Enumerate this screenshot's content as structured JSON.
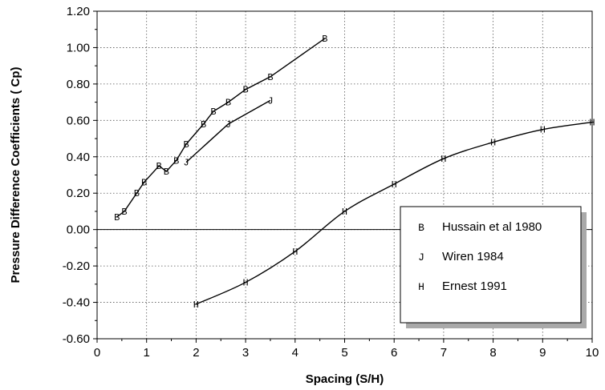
{
  "chart_data": {
    "type": "line",
    "title": "",
    "xlabel": "Spacing (S/H)",
    "ylabel": "Pressure Difference Coefficients ( Cp)",
    "xlim": [
      0,
      10
    ],
    "ylim": [
      -0.6,
      1.2
    ],
    "xticks": [
      0,
      1,
      2,
      3,
      4,
      5,
      6,
      7,
      8,
      9,
      10
    ],
    "yticks": [
      -0.6,
      -0.4,
      -0.2,
      0.0,
      0.2,
      0.4,
      0.6,
      0.8,
      1.0,
      1.2
    ],
    "x_tick_labels": [
      "0",
      "1",
      "2",
      "3",
      "4",
      "5",
      "6",
      "7",
      "8",
      "9",
      "10"
    ],
    "y_tick_labels": [
      "-0.60",
      "-0.40",
      "-0.20",
      "0.00",
      "0.20",
      "0.40",
      "0.60",
      "0.80",
      "1.00",
      "1.20"
    ],
    "grid": true,
    "zero_line": true,
    "legend_position": "lower-right",
    "series": [
      {
        "name": "Hussain et al 1980",
        "marker": "B",
        "smooth": false,
        "x": [
          0.4,
          0.55,
          0.8,
          0.95,
          1.25,
          1.4,
          1.6,
          1.8,
          2.15,
          2.35,
          2.65,
          3.0,
          3.5,
          4.6
        ],
        "y": [
          0.07,
          0.1,
          0.2,
          0.26,
          0.35,
          0.32,
          0.38,
          0.47,
          0.58,
          0.65,
          0.7,
          0.77,
          0.84,
          1.05
        ]
      },
      {
        "name": "Wiren 1984",
        "marker": "J",
        "smooth": false,
        "x": [
          1.8,
          2.65,
          3.5
        ],
        "y": [
          0.37,
          0.58,
          0.71
        ]
      },
      {
        "name": "Ernest 1991",
        "marker": "H",
        "smooth": true,
        "x": [
          2.0,
          3.0,
          4.0,
          5.0,
          6.0,
          7.0,
          8.0,
          9.0,
          10.0
        ],
        "y": [
          -0.41,
          -0.29,
          -0.12,
          0.1,
          0.25,
          0.39,
          0.48,
          0.55,
          0.59
        ]
      }
    ]
  }
}
